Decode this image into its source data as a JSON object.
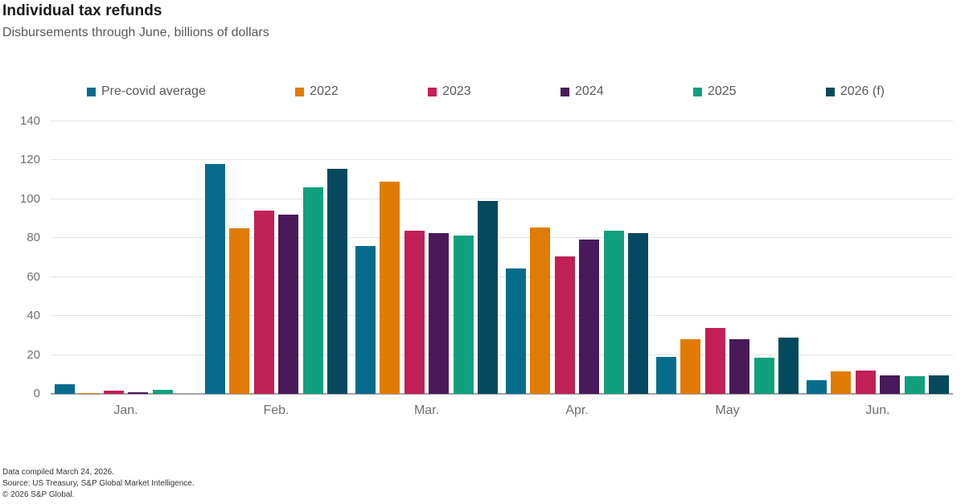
{
  "chart_data": {
    "type": "bar",
    "title": "Individual tax refunds",
    "subtitle": "Disbursements through June, billions of dollars",
    "categories": [
      "Jan.",
      "Feb.",
      "Mar.",
      "Apr.",
      "May",
      "Jun."
    ],
    "series": [
      {
        "name": "Pre-covid average",
        "color": "#076C8C",
        "values": [
          5,
          118,
          76,
          64.5,
          19,
          7
        ]
      },
      {
        "name": "2022",
        "color": "#E07C04",
        "values": [
          0.5,
          85,
          109,
          85.5,
          28,
          11.5
        ]
      },
      {
        "name": "2023",
        "color": "#C02056",
        "values": [
          1.5,
          94,
          84,
          70.5,
          34,
          12
        ]
      },
      {
        "name": "2024",
        "color": "#491A5A",
        "values": [
          0.7,
          92,
          82.5,
          79.5,
          28,
          9.5
        ]
      },
      {
        "name": "2025",
        "color": "#10A07E",
        "values": [
          2.2,
          106,
          81.5,
          84,
          18.5,
          9
        ]
      },
      {
        "name": "2026 (f)",
        "color": "#06495E",
        "values": [
          null,
          115.5,
          99,
          82.5,
          29,
          9.5
        ]
      }
    ],
    "xlabel": "",
    "ylabel": "",
    "ylim": [
      0,
      140
    ],
    "ytick_interval": 20,
    "grid": true,
    "legend_position": "top"
  },
  "footer": {
    "compiled": "Data compiled March 24, 2026.",
    "source": "Source: US Treasury, S&P Global Market Intelligence.",
    "copyright": "© 2026 S&P Global."
  }
}
